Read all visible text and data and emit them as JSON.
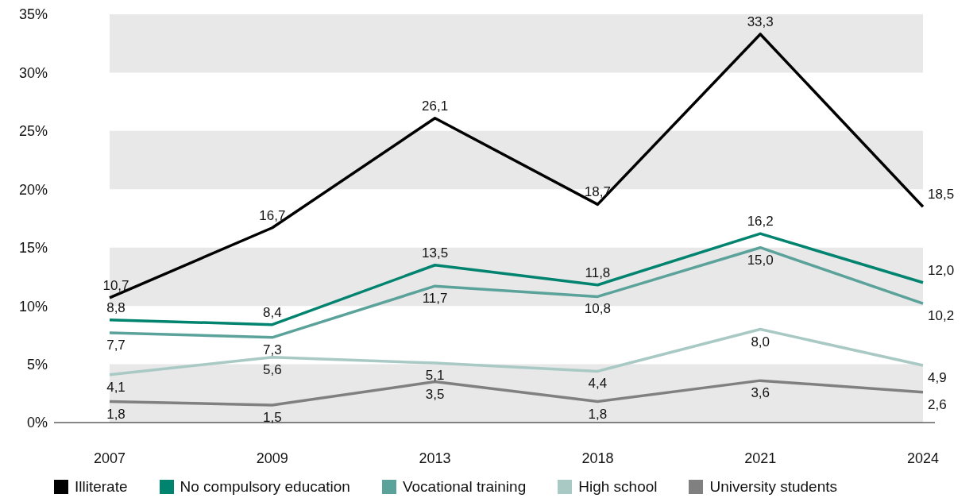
{
  "chart_data": {
    "type": "line",
    "categories": [
      "2007",
      "2009",
      "2013",
      "2018",
      "2021",
      "2024"
    ],
    "series": [
      {
        "name": "Illiterate",
        "color": "#000000",
        "values": [
          10.7,
          16.7,
          26.1,
          18.7,
          33.3,
          18.5
        ],
        "value_labels": [
          "10,7",
          "16,7",
          "26,1",
          "18,7",
          "33,3",
          "18,5"
        ]
      },
      {
        "name": "No compulsory education",
        "color": "#00836f",
        "values": [
          8.8,
          8.4,
          13.5,
          11.8,
          16.2,
          12.0
        ],
        "value_labels": [
          "8,8",
          "8,4",
          "13,5",
          "11,8",
          "16,2",
          "12,0"
        ]
      },
      {
        "name": "Vocational training",
        "color": "#5ba39a",
        "values": [
          7.7,
          7.3,
          11.7,
          10.8,
          15.0,
          10.2
        ],
        "value_labels": [
          "7,7",
          "7,3",
          "11,7",
          "10,8",
          "15,0",
          "10,2"
        ]
      },
      {
        "name": "High school",
        "color": "#a9c9c5",
        "values": [
          4.1,
          5.6,
          5.1,
          4.4,
          8.0,
          4.9
        ],
        "value_labels": [
          "4,1",
          "5,6",
          "5,1",
          "4,4",
          "8,0",
          "4,9"
        ]
      },
      {
        "name": "University students",
        "color": "#808080",
        "values": [
          1.8,
          1.5,
          3.5,
          1.8,
          3.6,
          2.6
        ],
        "value_labels": [
          "1,8",
          "1,5",
          "3,5",
          "1,8",
          "3,6",
          "2,6"
        ]
      }
    ],
    "ylim": [
      0,
      35
    ],
    "yticks": [
      {
        "value": 0,
        "label": "0%"
      },
      {
        "value": 5,
        "label": "5%"
      },
      {
        "value": 10,
        "label": "10%"
      },
      {
        "value": 15,
        "label": "15%"
      },
      {
        "value": 20,
        "label": "20%"
      },
      {
        "value": 25,
        "label": "25%"
      },
      {
        "value": 30,
        "label": "30%"
      },
      {
        "value": 35,
        "label": "35%"
      }
    ],
    "bands": [
      {
        "axis": "y",
        "from": 0,
        "to": 5,
        "color": "#e8e8e8"
      },
      {
        "axis": "y",
        "from": 10,
        "to": 15,
        "color": "#e8e8e8"
      },
      {
        "axis": "y",
        "from": 20,
        "to": 25,
        "color": "#e8e8e8"
      },
      {
        "axis": "y",
        "from": 30,
        "to": 35,
        "color": "#e8e8e8"
      }
    ],
    "grid": false,
    "legend": "bottom",
    "marker": "none",
    "line_style": "solid"
  }
}
